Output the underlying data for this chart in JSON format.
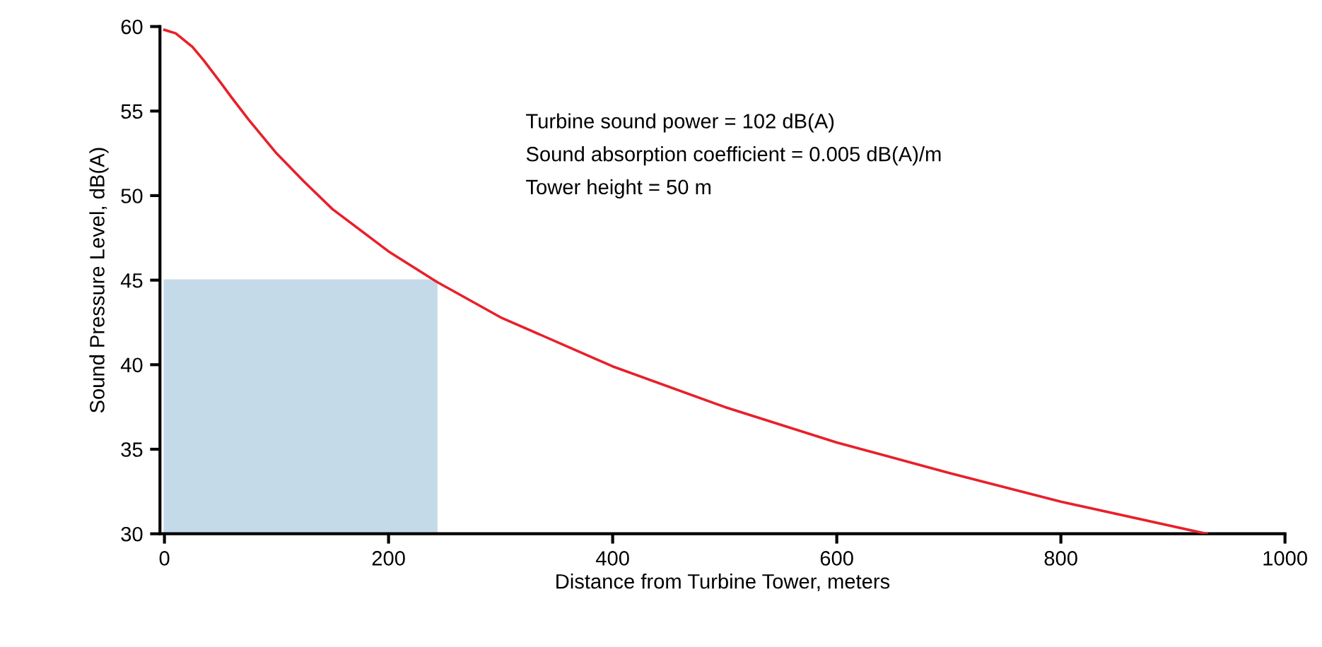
{
  "chart_data": {
    "type": "line",
    "xlabel": "Distance from Turbine Tower, meters",
    "ylabel": "Sound Pressure Level, dB(A)",
    "annotations": [
      "Turbine sound power = 102 dB(A)",
      "Sound absorption coefficient = 0.005 dB(A)/m",
      "Tower height = 50 m"
    ],
    "series": [
      {
        "type": "area",
        "color": "#c5dae9",
        "x": [
          0,
          243
        ],
        "values": [
          45,
          45
        ]
      },
      {
        "color": "#e8202a",
        "x": [
          0,
          5,
          10,
          25,
          35,
          50,
          60,
          75,
          100,
          125,
          150,
          200,
          243,
          300,
          400,
          500,
          600,
          700,
          800,
          930
        ],
        "values": [
          59.8,
          59.7,
          59.6,
          58.8,
          58.0,
          56.7,
          55.8,
          54.5,
          52.5,
          50.8,
          49.2,
          46.7,
          44.9,
          42.8,
          39.9,
          37.5,
          35.4,
          33.6,
          31.9,
          30.0
        ]
      }
    ],
    "xlim": [
      -4,
      1000
    ],
    "ylim": [
      30,
      60
    ],
    "xticks": [
      0,
      200,
      400,
      600,
      800,
      1000
    ],
    "yticks": [
      30,
      35,
      40,
      45,
      50,
      55,
      60
    ],
    "grid": false,
    "legend": false,
    "marker": "none",
    "line_style": "solid"
  }
}
